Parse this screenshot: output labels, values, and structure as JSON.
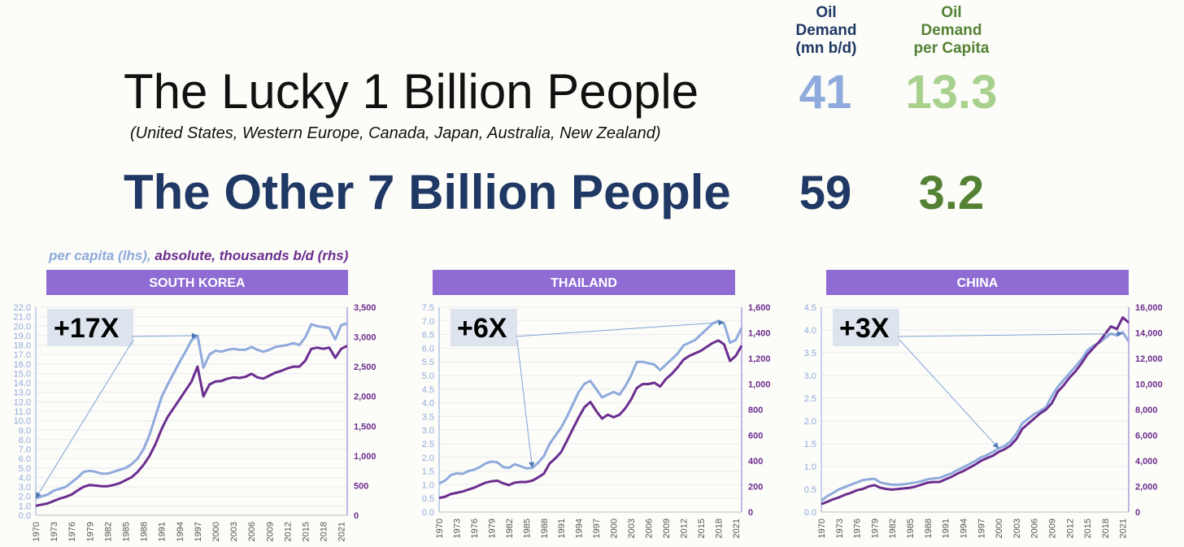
{
  "header": {
    "title1": "The Lucky 1 Billion People",
    "subtitle1": "(United States, Western Europe, Canada, Japan, Australia, New Zealand)",
    "title2": "The Other 7 Billion People",
    "col1_lines": [
      "Oil",
      "Demand",
      "(mn b/d)"
    ],
    "col2_lines": [
      "Oil",
      "Demand",
      "per Capita"
    ],
    "row1": {
      "demand": "41",
      "per_capita": "13.3"
    },
    "row2": {
      "demand": "59",
      "per_capita": "3.2"
    }
  },
  "legend": {
    "lhs_text": "per capita (lhs)",
    "sep": ", ",
    "rhs_text": "absolute, thousands b/d (rhs)"
  },
  "colors": {
    "dark_navy": "#1f3864",
    "light_blue": "#8faadc",
    "light_green": "#a9d18e",
    "dark_green": "#548235",
    "per_capita_line": "#8faadc",
    "absolute_line": "#6b2d8f",
    "panel_header": "#8e6cd3",
    "lhs_ticks": "#8faadc",
    "rhs_ticks": "#6b2d8f",
    "growth_box": "#dde4ee",
    "axis": "#8e6cd3",
    "year_ticks": "#555555"
  },
  "chart_data": [
    {
      "type": "line",
      "title": "SOUTH KOREA",
      "annotation": "+17X",
      "x_tick_labels": [
        "1970",
        "1973",
        "1976",
        "1979",
        "1982",
        "1985",
        "1988",
        "1991",
        "1994",
        "1997",
        "2000",
        "2003",
        "2006",
        "2009",
        "2012",
        "2015",
        "2018",
        "2021"
      ],
      "x": [
        1970,
        1971,
        1972,
        1973,
        1974,
        1975,
        1976,
        1977,
        1978,
        1979,
        1980,
        1981,
        1982,
        1983,
        1984,
        1985,
        1986,
        1987,
        1988,
        1989,
        1990,
        1991,
        1992,
        1993,
        1994,
        1995,
        1996,
        1997,
        1998,
        1999,
        2000,
        2001,
        2002,
        2003,
        2004,
        2005,
        2006,
        2007,
        2008,
        2009,
        2010,
        2011,
        2012,
        2013,
        2014,
        2015,
        2016,
        2017,
        2018,
        2019,
        2020,
        2021,
        2022
      ],
      "y_left_ticks": [
        "0.0",
        "1.0",
        "2.0",
        "3.0",
        "4.0",
        "5.0",
        "6.0",
        "7.0",
        "8.0",
        "9.0",
        "10.0",
        "11.0",
        "12.0",
        "13.0",
        "14.0",
        "15.0",
        "16.0",
        "17.0",
        "18.0",
        "19.0",
        "20.0",
        "21.0",
        "22.0"
      ],
      "y_right_ticks": [
        "0",
        "500",
        "1,000",
        "1,500",
        "2,000",
        "2,500",
        "3,000",
        "3,500"
      ],
      "ylim_left": [
        0,
        22
      ],
      "ylim_right": [
        0,
        3500
      ],
      "series": [
        {
          "name": "per capita (lhs)",
          "axis": "left",
          "values": [
            1.8,
            2.0,
            2.2,
            2.6,
            2.8,
            3.0,
            3.5,
            4.0,
            4.6,
            4.7,
            4.6,
            4.4,
            4.4,
            4.6,
            4.8,
            5.0,
            5.4,
            6.0,
            7.0,
            8.5,
            10.5,
            12.5,
            13.8,
            15.0,
            16.2,
            17.3,
            18.5,
            19.0,
            15.6,
            17.0,
            17.4,
            17.3,
            17.5,
            17.6,
            17.5,
            17.5,
            17.8,
            17.5,
            17.3,
            17.5,
            17.8,
            17.9,
            18.0,
            18.2,
            18.0,
            18.8,
            20.2,
            20.0,
            19.9,
            19.8,
            18.6,
            20.1,
            20.3
          ]
        },
        {
          "name": "absolute, thousands b/d (rhs)",
          "axis": "right",
          "values": [
            160,
            180,
            200,
            240,
            280,
            310,
            350,
            420,
            480,
            510,
            500,
            490,
            490,
            510,
            540,
            590,
            640,
            730,
            850,
            1000,
            1200,
            1450,
            1650,
            1800,
            1950,
            2100,
            2250,
            2500,
            2000,
            2200,
            2250,
            2260,
            2300,
            2320,
            2310,
            2330,
            2380,
            2320,
            2300,
            2350,
            2400,
            2430,
            2470,
            2500,
            2500,
            2600,
            2800,
            2820,
            2800,
            2820,
            2650,
            2800,
            2850
          ]
        }
      ]
    },
    {
      "type": "line",
      "title": "THAILAND",
      "annotation": "+6X",
      "x_tick_labels": [
        "1970",
        "1973",
        "1976",
        "1979",
        "1982",
        "1985",
        "1988",
        "1991",
        "1994",
        "1997",
        "2000",
        "2003",
        "2006",
        "2009",
        "2012",
        "2015",
        "2018",
        "2021"
      ],
      "x": [
        1970,
        1971,
        1972,
        1973,
        1974,
        1975,
        1976,
        1977,
        1978,
        1979,
        1980,
        1981,
        1982,
        1983,
        1984,
        1985,
        1986,
        1987,
        1988,
        1989,
        1990,
        1991,
        1992,
        1993,
        1994,
        1995,
        1996,
        1997,
        1998,
        1999,
        2000,
        2001,
        2002,
        2003,
        2004,
        2005,
        2006,
        2007,
        2008,
        2009,
        2010,
        2011,
        2012,
        2013,
        2014,
        2015,
        2016,
        2017,
        2018,
        2019,
        2020,
        2021,
        2022
      ],
      "y_left_ticks": [
        "0.0",
        "0.5",
        "1.0",
        "1.5",
        "2.0",
        "2.5",
        "3.0",
        "3.5",
        "4.0",
        "4.5",
        "5.0",
        "5.5",
        "6.0",
        "6.5",
        "7.0",
        "7.5"
      ],
      "y_right_ticks": [
        "0",
        "200",
        "400",
        "600",
        "800",
        "1,000",
        "1,200",
        "1,400",
        "1,600"
      ],
      "ylim_left": [
        0,
        7.5
      ],
      "ylim_right": [
        0,
        1600
      ],
      "series": [
        {
          "name": "per capita (lhs)",
          "axis": "left",
          "values": [
            1.05,
            1.15,
            1.35,
            1.42,
            1.4,
            1.5,
            1.55,
            1.65,
            1.78,
            1.85,
            1.82,
            1.65,
            1.62,
            1.75,
            1.68,
            1.6,
            1.62,
            1.8,
            2.05,
            2.5,
            2.8,
            3.1,
            3.5,
            3.95,
            4.4,
            4.7,
            4.8,
            4.5,
            4.2,
            4.3,
            4.4,
            4.3,
            4.6,
            5.0,
            5.5,
            5.5,
            5.45,
            5.4,
            5.2,
            5.4,
            5.6,
            5.8,
            6.1,
            6.2,
            6.3,
            6.5,
            6.7,
            6.9,
            7.0,
            6.9,
            6.2,
            6.3,
            6.75
          ]
        },
        {
          "name": "absolute, thousands b/d (rhs)",
          "axis": "right",
          "values": [
            110,
            120,
            140,
            150,
            160,
            175,
            190,
            210,
            230,
            240,
            245,
            225,
            210,
            230,
            235,
            235,
            245,
            270,
            300,
            380,
            420,
            470,
            560,
            650,
            740,
            820,
            860,
            790,
            730,
            760,
            740,
            760,
            810,
            880,
            970,
            1000,
            1000,
            1010,
            980,
            1040,
            1080,
            1130,
            1190,
            1220,
            1240,
            1260,
            1290,
            1320,
            1340,
            1310,
            1180,
            1220,
            1300
          ]
        }
      ]
    },
    {
      "type": "line",
      "title": "CHINA",
      "annotation": "+3X",
      "x_tick_labels": [
        "1970",
        "1973",
        "1976",
        "1979",
        "1982",
        "1985",
        "1988",
        "1991",
        "1994",
        "1997",
        "2000",
        "2003",
        "2006",
        "2009",
        "2012",
        "2015",
        "2018",
        "2021"
      ],
      "x": [
        1970,
        1971,
        1972,
        1973,
        1974,
        1975,
        1976,
        1977,
        1978,
        1979,
        1980,
        1981,
        1982,
        1983,
        1984,
        1985,
        1986,
        1987,
        1988,
        1989,
        1990,
        1991,
        1992,
        1993,
        1994,
        1995,
        1996,
        1997,
        1998,
        1999,
        2000,
        2001,
        2002,
        2003,
        2004,
        2005,
        2006,
        2007,
        2008,
        2009,
        2010,
        2011,
        2012,
        2013,
        2014,
        2015,
        2016,
        2017,
        2018,
        2019,
        2020,
        2021,
        2022
      ],
      "y_left_ticks": [
        "0.0",
        "0.5",
        "1.0",
        "1.5",
        "2.0",
        "2.5",
        "3.0",
        "3.5",
        "4.0",
        "4.5"
      ],
      "y_right_ticks": [
        "0",
        "2,000",
        "4,000",
        "6,000",
        "8,000",
        "10,000",
        "12,000",
        "14,000",
        "16,000"
      ],
      "ylim_left": [
        0,
        4.5
      ],
      "ylim_right": [
        0,
        16000
      ],
      "series": [
        {
          "name": "per capita (lhs)",
          "axis": "left",
          "values": [
            0.25,
            0.35,
            0.42,
            0.5,
            0.55,
            0.6,
            0.65,
            0.7,
            0.72,
            0.73,
            0.65,
            0.62,
            0.6,
            0.6,
            0.61,
            0.63,
            0.65,
            0.68,
            0.72,
            0.74,
            0.75,
            0.8,
            0.85,
            0.92,
            0.98,
            1.05,
            1.12,
            1.2,
            1.25,
            1.32,
            1.4,
            1.45,
            1.55,
            1.72,
            1.95,
            2.05,
            2.15,
            2.22,
            2.3,
            2.55,
            2.75,
            2.9,
            3.05,
            3.2,
            3.35,
            3.55,
            3.65,
            3.72,
            3.82,
            3.92,
            3.88,
            3.95,
            3.75
          ]
        },
        {
          "name": "absolute, thousands b/d (rhs)",
          "axis": "right",
          "values": [
            620,
            800,
            1000,
            1150,
            1350,
            1500,
            1700,
            1800,
            2000,
            2100,
            1900,
            1800,
            1750,
            1800,
            1850,
            1900,
            2000,
            2150,
            2300,
            2350,
            2350,
            2550,
            2750,
            3000,
            3200,
            3450,
            3700,
            4000,
            4200,
            4400,
            4700,
            4900,
            5200,
            5700,
            6500,
            6900,
            7300,
            7700,
            8000,
            8500,
            9400,
            9900,
            10500,
            11000,
            11600,
            12300,
            12800,
            13300,
            13900,
            14500,
            14300,
            15200,
            14800
          ]
        }
      ]
    }
  ]
}
